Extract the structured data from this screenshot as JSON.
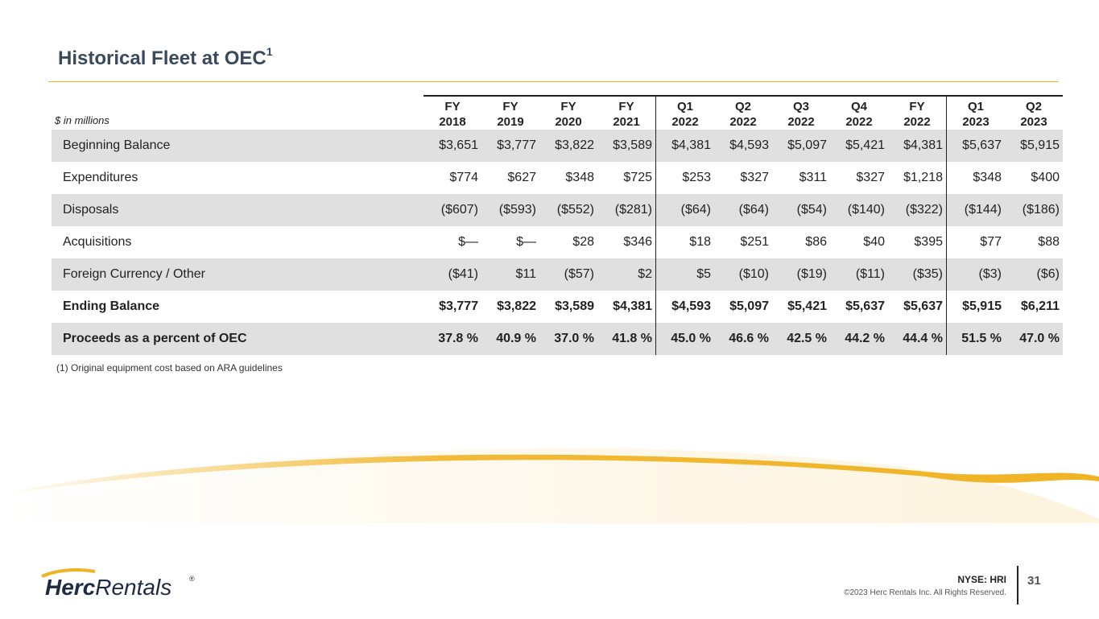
{
  "title": {
    "text": "Historical Fleet at OEC",
    "footnote_mark": "1"
  },
  "table": {
    "units_label": "$ in millions",
    "headers": [
      {
        "line1": "FY",
        "line2": "2018"
      },
      {
        "line1": "FY",
        "line2": "2019"
      },
      {
        "line1": "FY",
        "line2": "2020"
      },
      {
        "line1": "FY",
        "line2": "2021"
      },
      {
        "line1": "Q1",
        "line2": "2022"
      },
      {
        "line1": "Q2",
        "line2": "2022"
      },
      {
        "line1": "Q3",
        "line2": "2022"
      },
      {
        "line1": "Q4",
        "line2": "2022"
      },
      {
        "line1": "FY",
        "line2": "2022"
      },
      {
        "line1": "Q1",
        "line2": "2023"
      },
      {
        "line1": "Q2",
        "line2": "2023"
      }
    ],
    "rows": [
      {
        "label": "Beginning Balance",
        "values": [
          "$3,651",
          "$3,777",
          "$3,822",
          "$3,589",
          "$4,381",
          "$4,593",
          "$5,097",
          "$5,421",
          "$4,381",
          "$5,637",
          "$5,915"
        ]
      },
      {
        "label": "Expenditures",
        "values": [
          "$774",
          "$627",
          "$348",
          "$725",
          "$253",
          "$327",
          "$311",
          "$327",
          "$1,218",
          "$348",
          "$400"
        ]
      },
      {
        "label": "Disposals",
        "values": [
          "($607)",
          "($593)",
          "($552)",
          "($281)",
          "($64)",
          "($64)",
          "($54)",
          "($140)",
          "($322)",
          "($144)",
          "($186)"
        ]
      },
      {
        "label": "Acquisitions",
        "values": [
          "$—",
          "$—",
          "$28",
          "$346",
          "$18",
          "$251",
          "$86",
          "$40",
          "$395",
          "$77",
          "$88"
        ]
      },
      {
        "label": "Foreign Currency / Other",
        "values": [
          "($41)",
          "$11",
          "($57)",
          "$2",
          "$5",
          "($10)",
          "($19)",
          "($11)",
          "($35)",
          "($3)",
          "($6)"
        ]
      },
      {
        "label": "Ending Balance",
        "values": [
          "$3,777",
          "$3,822",
          "$3,589",
          "$4,381",
          "$4,593",
          "$5,097",
          "$5,421",
          "$5,637",
          "$5,637",
          "$5,915",
          "$6,211"
        ]
      },
      {
        "label": "Proceeds as a percent of OEC",
        "values": [
          "37.8 %",
          "40.9 %",
          "37.0 %",
          "41.8 %",
          "45.0 %",
          "46.6 %",
          "42.5 %",
          "44.2 %",
          "44.4 %",
          "51.5 %",
          "47.0 %"
        ]
      }
    ]
  },
  "footnote": "(1)  Original equipment cost based on ARA guidelines",
  "footer": {
    "logo_bold": "Herc",
    "logo_light": "Rentals",
    "logo_reg": "®",
    "ticker": "NYSE: HRI",
    "copyright": "©2023 Herc Rentals Inc.  All Rights Reserved.",
    "page_number": "31"
  },
  "colors": {
    "accent": "#f0b323",
    "title": "#3a4a5c",
    "shade": "#e0e0e0",
    "logo": "#1f2a44"
  }
}
